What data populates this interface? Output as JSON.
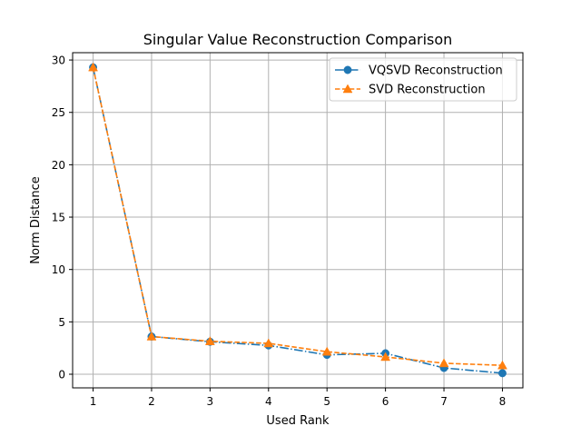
{
  "chart_data": {
    "type": "line",
    "title": "Singular Value Reconstruction Comparison",
    "xlabel": "Used Rank",
    "ylabel": "Norm Distance",
    "x": [
      1,
      2,
      3,
      4,
      5,
      6,
      7,
      8
    ],
    "xticks": [
      1,
      2,
      3,
      4,
      5,
      6,
      7,
      8
    ],
    "yticks": [
      0,
      5,
      10,
      15,
      20,
      25,
      30
    ],
    "xlim": [
      0.65,
      8.35
    ],
    "ylim": [
      -1.3,
      30.7
    ],
    "grid": true,
    "legend_position": "upper right",
    "series": [
      {
        "name": "VQSVD Reconstruction",
        "values": [
          29.3,
          3.6,
          3.1,
          2.75,
          1.85,
          2.0,
          0.6,
          0.1
        ],
        "color": "#1f77b4",
        "marker": "circle",
        "linestyle": "dash-dot"
      },
      {
        "name": "SVD Reconstruction",
        "values": [
          29.3,
          3.6,
          3.15,
          2.95,
          2.15,
          1.65,
          1.05,
          0.85
        ],
        "color": "#ff7f0e",
        "marker": "triangle",
        "linestyle": "dashed"
      }
    ]
  }
}
